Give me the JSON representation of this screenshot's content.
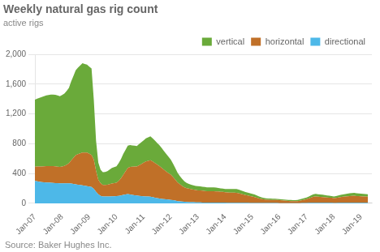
{
  "chart_data": {
    "type": "area",
    "stacked": true,
    "title": "Weekly natural gas rig count",
    "subtitle": "active rigs",
    "source": "Source: Baker Hughes Inc.",
    "grid": "y",
    "legend": "upper right",
    "xlim": [
      2007.0,
      2019.4
    ],
    "xticks": [
      {
        "value": 2007,
        "label": "Jan-07"
      },
      {
        "value": 2008,
        "label": "Jan-08"
      },
      {
        "value": 2009,
        "label": "Jan-09"
      },
      {
        "value": 2010,
        "label": "Jan-10"
      },
      {
        "value": 2011,
        "label": "Jan-11"
      },
      {
        "value": 2012,
        "label": "Jan-12"
      },
      {
        "value": 2013,
        "label": "Jan-13"
      },
      {
        "value": 2014,
        "label": "Jan-14"
      },
      {
        "value": 2015,
        "label": "Jan-15"
      },
      {
        "value": 2016,
        "label": "Jan-16"
      },
      {
        "value": 2017,
        "label": "Jan-17"
      },
      {
        "value": 2018,
        "label": "Jan-18"
      },
      {
        "value": 2019,
        "label": "Jan-19"
      }
    ],
    "ylim": [
      0,
      2000
    ],
    "yticks": [
      0,
      400,
      800,
      {
        "value": 1200,
        "label": "1,200"
      },
      {
        "value": 1600,
        "label": "1,600"
      },
      {
        "value": 2000,
        "label": "2,000"
      }
    ],
    "x": [
      2007.0,
      2007.083,
      2007.167,
      2007.25,
      2007.333,
      2007.417,
      2007.5,
      2007.583,
      2007.667,
      2007.75,
      2007.833,
      2007.917,
      2008.0,
      2008.083,
      2008.167,
      2008.25,
      2008.333,
      2008.417,
      2008.5,
      2008.583,
      2008.667,
      2008.75,
      2008.833,
      2008.917,
      2009.0,
      2009.083,
      2009.167,
      2009.25,
      2009.333,
      2009.417,
      2009.5,
      2009.583,
      2009.667,
      2009.75,
      2009.833,
      2009.917,
      2010.0,
      2010.083,
      2010.167,
      2010.25,
      2010.333,
      2010.417,
      2010.5,
      2010.583,
      2010.667,
      2010.75,
      2010.833,
      2010.917,
      2011.0,
      2011.083,
      2011.167,
      2011.25,
      2011.333,
      2011.417,
      2011.5,
      2011.583,
      2011.667,
      2011.75,
      2011.833,
      2011.917,
      2012.0,
      2012.083,
      2012.167,
      2012.25,
      2012.333,
      2012.417,
      2012.5,
      2012.583,
      2012.667,
      2012.75,
      2012.833,
      2012.917,
      2013.0,
      2013.083,
      2013.167,
      2013.25,
      2013.333,
      2013.417,
      2013.5,
      2013.583,
      2013.667,
      2013.75,
      2013.833,
      2013.917,
      2014.0,
      2014.083,
      2014.167,
      2014.25,
      2014.333,
      2014.417,
      2014.5,
      2014.583,
      2014.667,
      2014.75,
      2014.833,
      2014.917,
      2015.0,
      2015.083,
      2015.167,
      2015.25,
      2015.333,
      2015.417,
      2015.5,
      2015.583,
      2015.667,
      2015.75,
      2015.833,
      2015.917,
      2016.0,
      2016.083,
      2016.167,
      2016.25,
      2016.333,
      2016.417,
      2016.5,
      2016.583,
      2016.667,
      2016.75,
      2016.833,
      2016.917,
      2017.0,
      2017.083,
      2017.167,
      2017.25,
      2017.333,
      2017.417,
      2017.5,
      2017.583,
      2017.667,
      2017.75,
      2017.833,
      2017.917,
      2018.0,
      2018.083,
      2018.167,
      2018.25,
      2018.333,
      2018.417,
      2018.5,
      2018.583,
      2018.667,
      2018.75,
      2018.833,
      2018.917,
      2019.0,
      2019.083,
      2019.167,
      2019.25
    ],
    "series": [
      {
        "name": "directional",
        "color": "#4db8e8",
        "values": [
          300,
          295,
          290,
          285,
          282,
          280,
          278,
          276,
          274,
          272,
          270,
          268,
          268,
          268,
          268,
          268,
          265,
          260,
          255,
          250,
          245,
          240,
          235,
          230,
          225,
          220,
          195,
          155,
          120,
          100,
          92,
          90,
          90,
          92,
          94,
          95,
          96,
          100,
          105,
          112,
          118,
          124,
          118,
          112,
          108,
          104,
          100,
          96,
          94,
          92,
          90,
          88,
          82,
          76,
          70,
          65,
          60,
          55,
          52,
          50,
          46,
          42,
          36,
          30,
          26,
          23,
          20,
          18,
          16,
          15,
          14,
          13,
          12,
          12,
          11,
          11,
          10,
          10,
          10,
          10,
          10,
          10,
          9,
          9,
          9,
          8,
          8,
          8,
          8,
          8,
          7,
          7,
          7,
          6,
          6,
          5,
          5,
          4,
          4,
          3,
          3,
          3,
          3,
          3,
          3,
          3,
          3,
          3,
          2,
          2,
          2,
          2,
          2,
          2,
          2,
          2,
          2,
          2,
          3,
          4,
          5,
          6,
          7,
          8,
          8,
          8,
          7,
          7,
          7,
          6,
          6,
          6,
          5,
          5,
          6,
          6,
          7,
          7,
          7,
          8,
          8,
          8,
          7,
          7,
          7,
          6,
          6,
          6
        ]
      },
      {
        "name": "horizontal",
        "color": "#c07028",
        "values": [
          190,
          200,
          205,
          210,
          215,
          218,
          220,
          222,
          224,
          225,
          222,
          220,
          225,
          235,
          250,
          270,
          310,
          350,
          390,
          410,
          425,
          440,
          445,
          450,
          440,
          430,
          390,
          280,
          195,
          170,
          155,
          155,
          160,
          165,
          170,
          175,
          180,
          200,
          230,
          270,
          310,
          350,
          370,
          380,
          385,
          390,
          410,
          430,
          450,
          470,
          480,
          490,
          480,
          465,
          450,
          435,
          415,
          395,
          375,
          355,
          340,
          310,
          280,
          250,
          230,
          210,
          195,
          185,
          180,
          175,
          170,
          165,
          162,
          160,
          158,
          155,
          153,
          152,
          152,
          152,
          150,
          148,
          146,
          144,
          140,
          138,
          136,
          135,
          134,
          133,
          128,
          120,
          112,
          104,
          98,
          92,
          86,
          80,
          70,
          62,
          55,
          50,
          46,
          44,
          42,
          42,
          42,
          41,
          40,
          38,
          35,
          32,
          30,
          28,
          26,
          26,
          28,
          32,
          38,
          44,
          50,
          60,
          70,
          80,
          82,
          80,
          78,
          76,
          74,
          72,
          70,
          68,
          64,
          68,
          73,
          78,
          82,
          85,
          88,
          90,
          92,
          93,
          91,
          90,
          88,
          86,
          84,
          82
        ]
      },
      {
        "name": "vertical",
        "color": "#6aaa3a",
        "values": [
          900,
          910,
          920,
          930,
          940,
          950,
          955,
          960,
          960,
          960,
          955,
          950,
          960,
          970,
          990,
          1010,
          1060,
          1100,
          1140,
          1160,
          1180,
          1200,
          1190,
          1180,
          1170,
          1160,
          800,
          400,
          230,
          180,
          170,
          175,
          180,
          195,
          210,
          215,
          220,
          240,
          260,
          280,
          290,
          300,
          295,
          285,
          280,
          275,
          285,
          295,
          300,
          310,
          315,
          320,
          310,
          300,
          290,
          280,
          265,
          250,
          235,
          220,
          200,
          180,
          155,
          130,
          110,
          95,
          80,
          70,
          65,
          60,
          58,
          55,
          55,
          55,
          54,
          53,
          52,
          52,
          52,
          52,
          50,
          48,
          46,
          44,
          44,
          46,
          48,
          50,
          50,
          50,
          48,
          46,
          44,
          42,
          40,
          38,
          36,
          34,
          30,
          26,
          22,
          20,
          18,
          18,
          18,
          17,
          16,
          15,
          14,
          14,
          14,
          14,
          14,
          14,
          14,
          15,
          16,
          18,
          20,
          22,
          24,
          26,
          30,
          34,
          36,
          34,
          33,
          32,
          30,
          28,
          26,
          24,
          22,
          24,
          26,
          28,
          30,
          32,
          34,
          36,
          38,
          38,
          37,
          36,
          35,
          34,
          33,
          32
        ]
      }
    ]
  }
}
